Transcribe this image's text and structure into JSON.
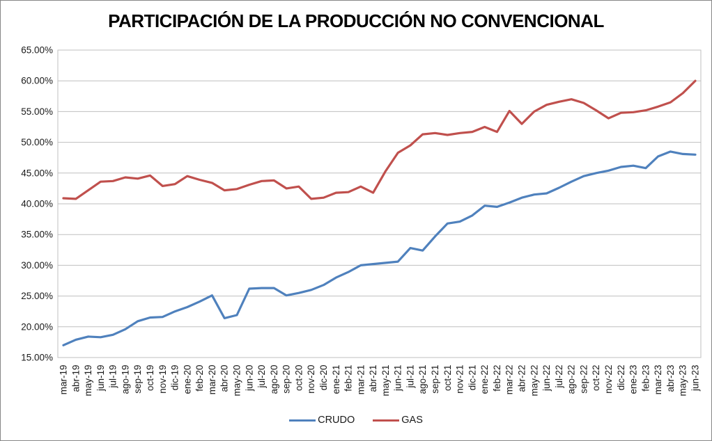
{
  "chart_data": {
    "type": "line",
    "title": "PARTICIPACIÓN DE LA PRODUCCIÓN NO CONVENCIONAL",
    "categories": [
      "mar-19",
      "abr-19",
      "may-19",
      "jun-19",
      "jul-19",
      "ago-19",
      "sep-19",
      "oct-19",
      "nov-19",
      "dic-19",
      "ene-20",
      "feb-20",
      "mar-20",
      "abr-20",
      "may-20",
      "jun-20",
      "jul-20",
      "ago-20",
      "sep-20",
      "oct-20",
      "nov-20",
      "dic-20",
      "ene-21",
      "feb-21",
      "mar-21",
      "abr-21",
      "may-21",
      "jun-21",
      "jul-21",
      "ago-21",
      "sep-21",
      "oct-21",
      "nov-21",
      "dic-21",
      "ene-22",
      "feb-22",
      "mar-22",
      "abr-22",
      "may-22",
      "jun-22",
      "jul-22",
      "ago-22",
      "sep-22",
      "oct-22",
      "nov-22",
      "dic-22",
      "ene-23",
      "feb-23",
      "mar-23",
      "abr-23",
      "may-23",
      "jun-23"
    ],
    "series": [
      {
        "name": "CRUDO",
        "color": "#4F81BD",
        "values": [
          17.0,
          17.9,
          18.4,
          18.3,
          18.7,
          19.6,
          20.9,
          21.5,
          21.6,
          22.5,
          23.2,
          24.1,
          25.1,
          21.4,
          21.9,
          26.2,
          26.3,
          26.3,
          25.1,
          25.5,
          26.0,
          26.8,
          28.0,
          28.9,
          30.0,
          30.2,
          30.4,
          30.6,
          32.8,
          32.4,
          34.7,
          36.8,
          37.1,
          38.1,
          39.7,
          39.5,
          40.2,
          41.0,
          41.5,
          41.7,
          42.6,
          43.6,
          44.5,
          45.0,
          45.4,
          46.0,
          46.2,
          45.8,
          47.7,
          48.5,
          48.1,
          48.0
        ]
      },
      {
        "name": "GAS",
        "color": "#C0504D",
        "values": [
          40.9,
          40.8,
          42.2,
          43.6,
          43.7,
          44.3,
          44.1,
          44.6,
          42.9,
          43.2,
          44.5,
          43.9,
          43.4,
          42.2,
          42.4,
          43.1,
          43.7,
          43.8,
          42.5,
          42.8,
          40.8,
          41.0,
          41.8,
          41.9,
          42.8,
          41.8,
          45.3,
          48.3,
          49.5,
          51.3,
          51.5,
          51.2,
          51.5,
          51.7,
          52.5,
          51.7,
          55.1,
          53.0,
          55.0,
          56.1,
          56.6,
          57.0,
          56.4,
          55.2,
          53.9,
          54.8,
          54.9,
          55.2,
          55.8,
          56.5,
          58.0,
          60.0
        ]
      }
    ],
    "xlabel": "",
    "ylabel": "",
    "ylim": [
      15,
      65
    ],
    "ytick_step": 5,
    "ytick_labels": [
      "65.00%",
      "60.00%",
      "55.00%",
      "50.00%",
      "45.00%",
      "40.00%",
      "35.00%",
      "30.00%",
      "25.00%",
      "20.00%",
      "15.00%"
    ],
    "grid": "horizontal",
    "gridline_color": "#BFBFBF",
    "axis_text_color": "#1a1a1a",
    "legend_position": "bottom"
  }
}
